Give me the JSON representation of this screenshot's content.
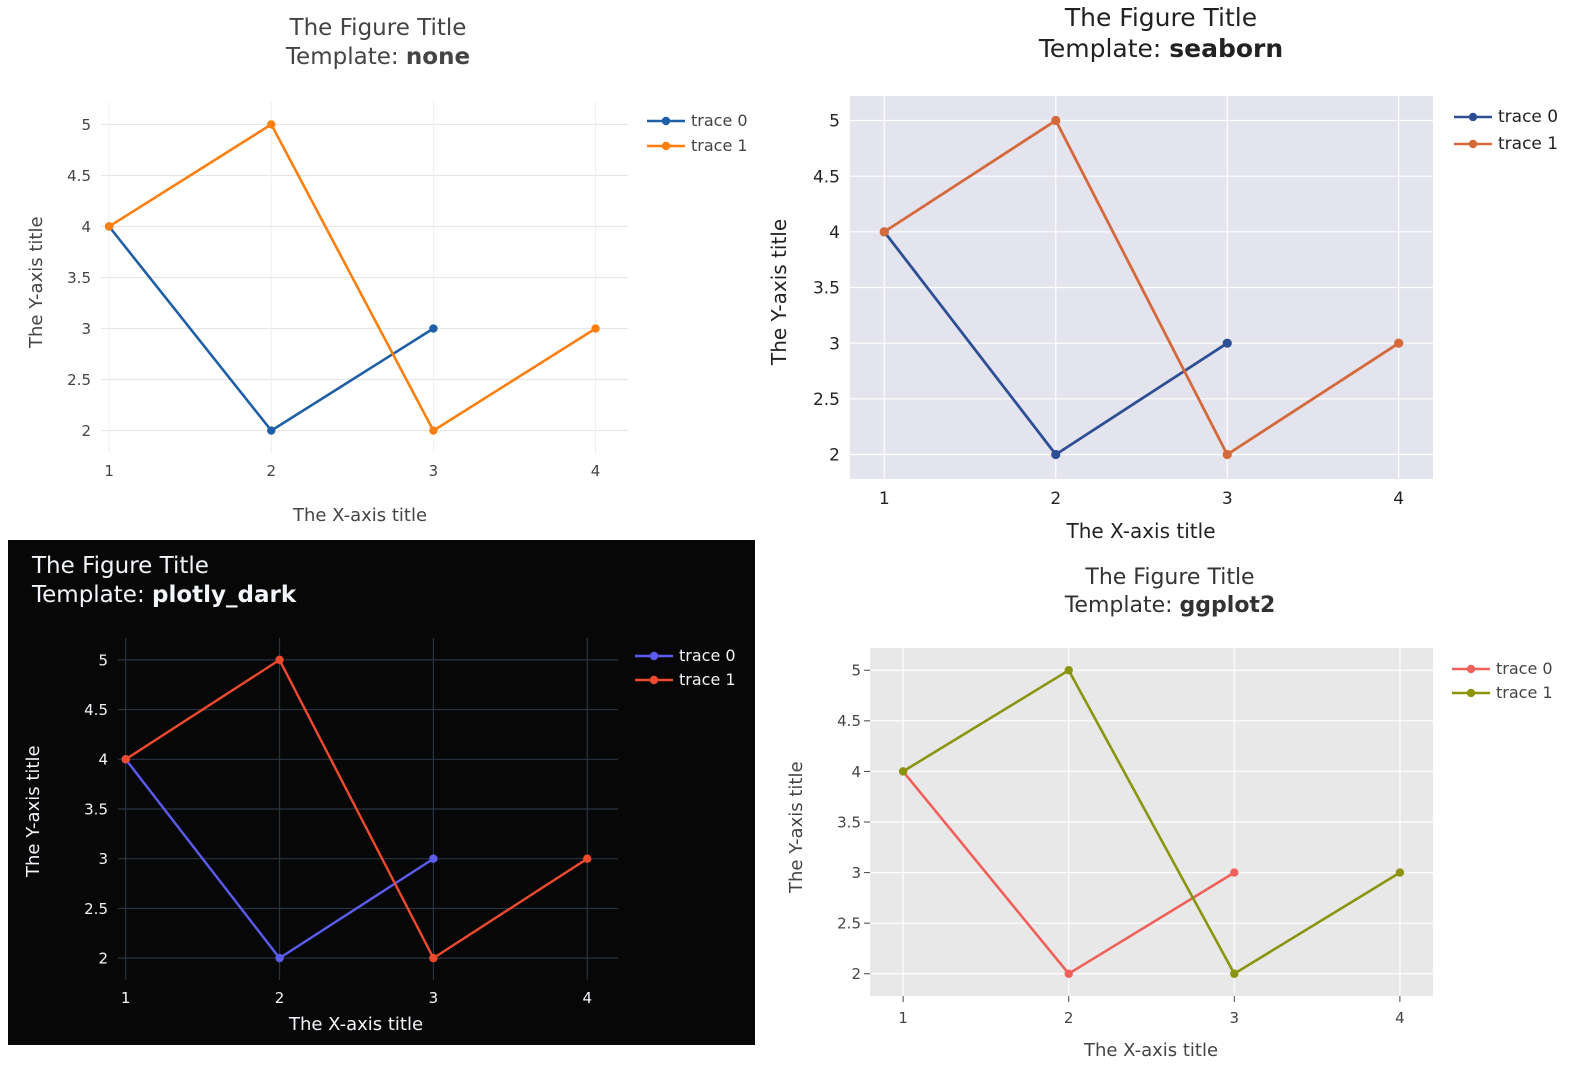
{
  "chart_data": [
    {
      "type": "line",
      "template": "none",
      "title": "The Figure Title",
      "subtitle_prefix": "Template: ",
      "subtitle_bold": "none",
      "xlabel": "The X-axis title",
      "ylabel": "The Y-axis title",
      "xlim": [
        0.95,
        4.2
      ],
      "ylim": [
        1.78,
        5.22
      ],
      "xticks": [
        "1",
        "2",
        "3",
        "4"
      ],
      "yticks": [
        "2",
        "2.5",
        "3",
        "3.5",
        "4",
        "4.5",
        "5"
      ],
      "grid": true,
      "legend": "right",
      "background": "#ffffff",
      "text_color": "#444444",
      "series": [
        {
          "name": "trace 0",
          "color": "#1f5fa6",
          "x": [
            1,
            2,
            3
          ],
          "y": [
            4,
            2,
            3
          ]
        },
        {
          "name": "trace 1",
          "color": "#ff7f0e",
          "x": [
            1,
            2,
            3,
            4
          ],
          "y": [
            4,
            5,
            2,
            3
          ]
        }
      ]
    },
    {
      "type": "line",
      "template": "seaborn",
      "title": "The Figure Title",
      "subtitle_prefix": "Template: ",
      "subtitle_bold": "seaborn",
      "xlabel": "The X-axis title",
      "ylabel": "The Y-axis title",
      "xlim": [
        0.8,
        4.2
      ],
      "ylim": [
        1.78,
        5.22
      ],
      "xticks": [
        "1",
        "2",
        "3",
        "4"
      ],
      "yticks": [
        "2",
        "2.5",
        "3",
        "3.5",
        "4",
        "4.5",
        "5"
      ],
      "grid": true,
      "legend": "right",
      "background": "#ffffff",
      "plot_background": "#e4e4ee",
      "text_color": "#222222",
      "series": [
        {
          "name": "trace 0",
          "color": "#2f4f95",
          "x": [
            1,
            2,
            3
          ],
          "y": [
            4,
            2,
            3
          ]
        },
        {
          "name": "trace 1",
          "color": "#d4693b",
          "x": [
            1,
            2,
            3,
            4
          ],
          "y": [
            4,
            5,
            2,
            3
          ]
        }
      ]
    },
    {
      "type": "line",
      "template": "plotly_dark",
      "title": "The Figure Title",
      "subtitle_prefix": "Template: ",
      "subtitle_bold": "plotly_dark",
      "xlabel": "The X-axis title",
      "ylabel": "The Y-axis title",
      "xlim": [
        0.95,
        4.2
      ],
      "ylim": [
        1.78,
        5.22
      ],
      "xticks": [
        "1",
        "2",
        "3",
        "4"
      ],
      "yticks": [
        "2",
        "2.5",
        "3",
        "3.5",
        "4",
        "4.5",
        "5"
      ],
      "grid": true,
      "legend": "right",
      "background": "#070707",
      "text_color": "#f2f5fa",
      "series": [
        {
          "name": "trace 0",
          "color": "#5b5cf0",
          "x": [
            1,
            2,
            3
          ],
          "y": [
            4,
            2,
            3
          ]
        },
        {
          "name": "trace 1",
          "color": "#ef4a2e",
          "x": [
            1,
            2,
            3,
            4
          ],
          "y": [
            4,
            5,
            2,
            3
          ]
        }
      ]
    },
    {
      "type": "line",
      "template": "ggplot2",
      "title": "The Figure Title",
      "subtitle_prefix": "Template: ",
      "subtitle_bold": "ggplot2",
      "xlabel": "The X-axis title",
      "ylabel": "The Y-axis title",
      "xlim": [
        0.8,
        4.2
      ],
      "ylim": [
        1.78,
        5.22
      ],
      "xticks": [
        "1",
        "2",
        "3",
        "4"
      ],
      "yticks": [
        "2",
        "2.5",
        "3",
        "3.5",
        "4",
        "4.5",
        "5"
      ],
      "grid": true,
      "legend": "right",
      "background": "#ffffff",
      "plot_background": "#e8e8e8",
      "text_color": "#444444",
      "series": [
        {
          "name": "trace 0",
          "color": "#f0605a",
          "x": [
            1,
            2,
            3
          ],
          "y": [
            4,
            2,
            3
          ]
        },
        {
          "name": "trace 1",
          "color": "#8a940c",
          "x": [
            1,
            2,
            3,
            4
          ],
          "y": [
            4,
            5,
            2,
            3
          ]
        }
      ]
    }
  ]
}
